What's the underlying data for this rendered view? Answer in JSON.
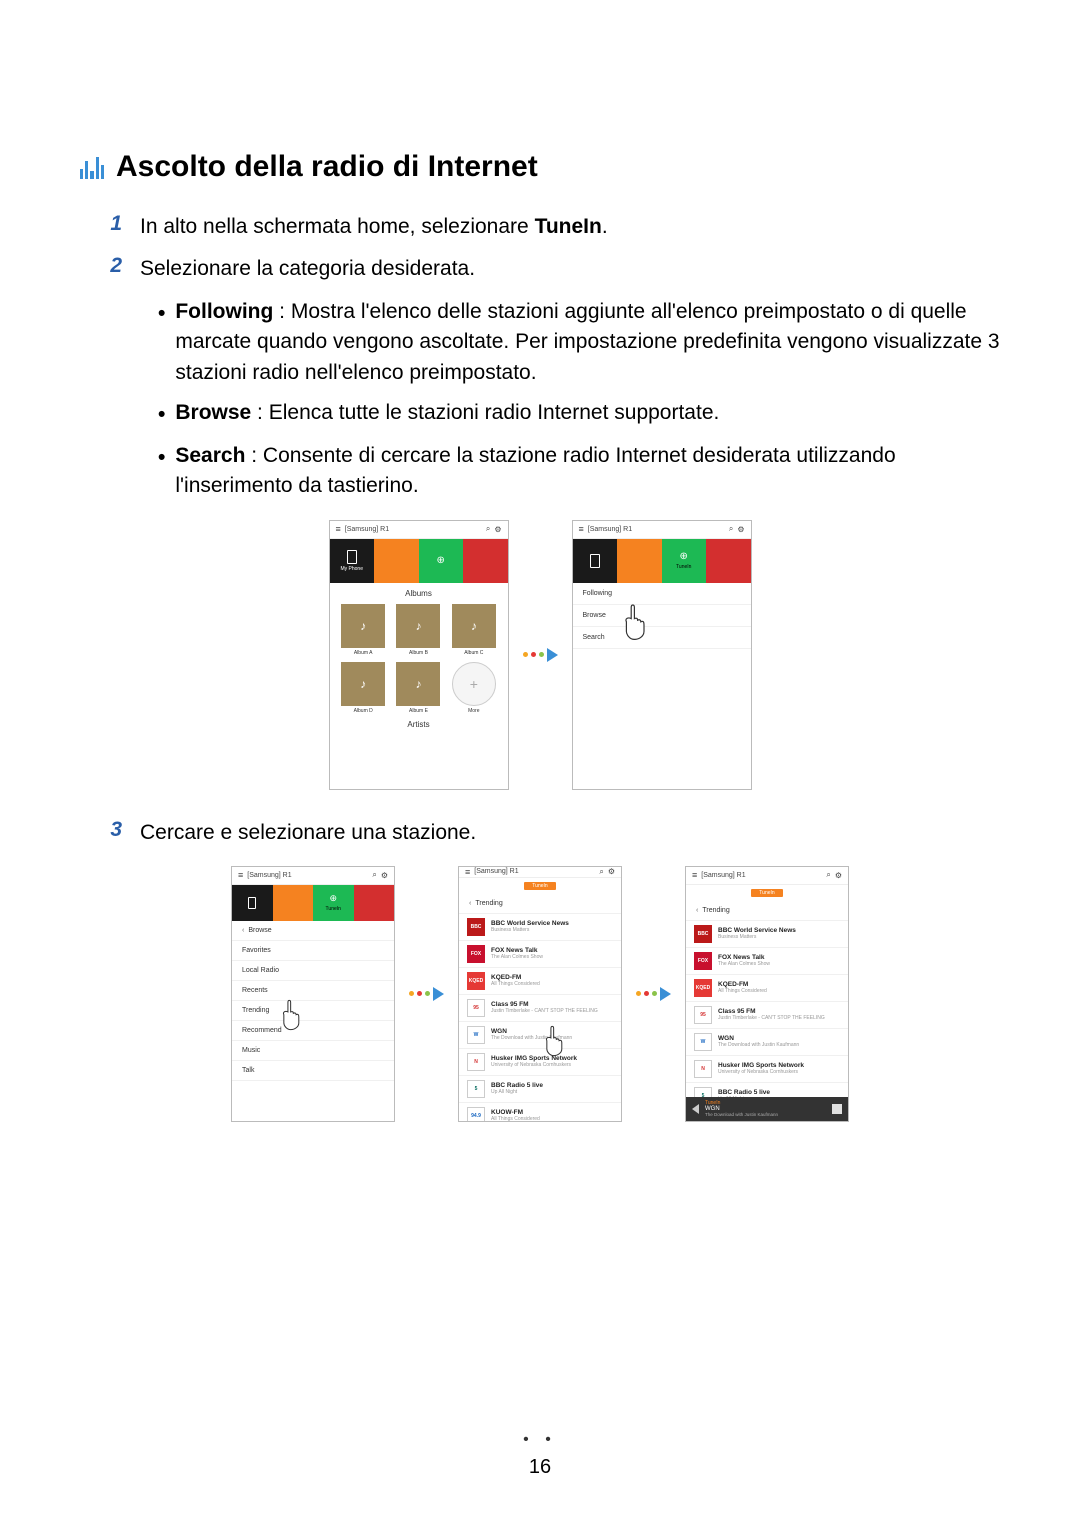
{
  "title": "Ascolto della radio di Internet",
  "steps": {
    "s1": {
      "n": "1",
      "text_a": "In alto nella schermata home, selezionare ",
      "bold": "TuneIn",
      "text_b": "."
    },
    "s2": {
      "n": "2",
      "text": "Selezionare la categoria desiderata."
    },
    "s3": {
      "n": "3",
      "text": "Cercare e selezionare una stazione."
    }
  },
  "bullets": {
    "b1": {
      "bold": "Following",
      "text": " : Mostra l'elenco delle stazioni aggiunte all'elenco preimpostato o di quelle marcate quando vengono ascoltate. Per impostazione predefinita vengono visualizzate 3 stazioni radio nell'elenco preimpostato."
    },
    "b2": {
      "bold": "Browse",
      "text": " : Elenca tutte le stazioni radio Internet supportate."
    },
    "b3": {
      "bold": "Search",
      "text": " : Consente di cercare la stazione radio Internet desiderata utilizzando l'inserimento da tastierino."
    }
  },
  "phone": {
    "header": "[Samsung] R1",
    "myphone": "My Phone",
    "tunein": "TuneIn",
    "albums_label": "Albums",
    "artists_label": "Artists",
    "albums": [
      "Album A",
      "Album B",
      "Album C",
      "Album D",
      "Album E",
      "More"
    ],
    "menu2": [
      "Following",
      "Browse",
      "Search"
    ],
    "browse_back": "Browse",
    "browse_items": [
      "Favorites",
      "Local Radio",
      "Recents",
      "Trending",
      "Recommend",
      "Music",
      "Talk"
    ],
    "trending": "Trending",
    "stations": [
      {
        "name": "BBC World Service News",
        "sub": "Business Matters",
        "logo_bg": "#bb1919",
        "logo_text": "BBC"
      },
      {
        "name": "FOX News Talk",
        "sub": "The Alan Colmes Show",
        "logo_bg": "#c8102e",
        "logo_text": "FOX"
      },
      {
        "name": "KQED-FM",
        "sub": "All Things Considered",
        "logo_bg": "#e53935",
        "logo_text": "KQED"
      },
      {
        "name": "Class 95 FM",
        "sub": "Justin Timberlake - CAN'T STOP THE FEELING",
        "logo_bg": "#ffffff",
        "logo_text": "95",
        "logo_color": "#d32f2f"
      },
      {
        "name": "WGN",
        "sub": "The Download with Justin Kaufmann",
        "logo_bg": "#ffffff",
        "logo_text": "W",
        "logo_color": "#1565c0"
      },
      {
        "name": "Husker IMG Sports Network",
        "sub": "University of Nebraska Cornhuskers",
        "logo_bg": "#ffffff",
        "logo_text": "N",
        "logo_color": "#d32f2f"
      },
      {
        "name": "BBC Radio 5 live",
        "sub": "Up All Night",
        "logo_bg": "#ffffff",
        "logo_text": "5",
        "logo_color": "#00695c"
      },
      {
        "name": "KUOW-FM",
        "sub": "All Things Considered",
        "logo_bg": "#ffffff",
        "logo_text": "94.9",
        "logo_color": "#1565c0"
      }
    ],
    "miniplayer": {
      "brand": "TuneIn",
      "station": "WGN",
      "track": "The Download with Justin Kaufmann"
    }
  },
  "colors": {
    "arrow_d1": "#f5a623",
    "arrow_d2": "#e53935",
    "arrow_d3": "#8bc34a",
    "arrow_tri": "#3a8fd6"
  },
  "page": "16"
}
